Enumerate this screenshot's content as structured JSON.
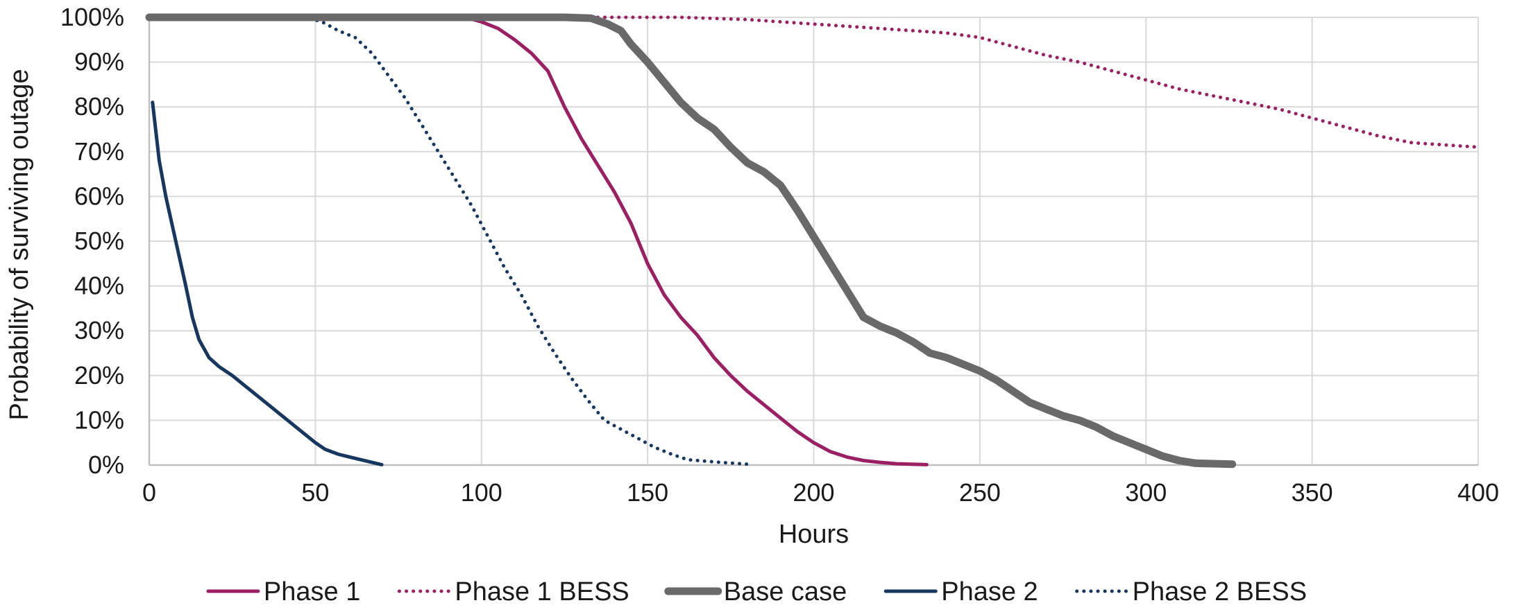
{
  "chart_data": {
    "type": "line",
    "title": "",
    "xlabel": "Hours",
    "ylabel": "Probability of surviving outage",
    "xlim": [
      0,
      400
    ],
    "ylim": [
      0,
      100
    ],
    "x_ticks": [
      0,
      50,
      100,
      150,
      200,
      250,
      300,
      350,
      400
    ],
    "x_tick_labels": [
      "0",
      "50",
      "100",
      "150",
      "200",
      "250",
      "300",
      "350",
      "400"
    ],
    "y_ticks": [
      0,
      10,
      20,
      30,
      40,
      50,
      60,
      70,
      80,
      90,
      100
    ],
    "y_tick_labels": [
      "0%",
      "10%",
      "20%",
      "30%",
      "40%",
      "50%",
      "60%",
      "70%",
      "80%",
      "90%",
      "100%"
    ],
    "grid": "both",
    "legend_position": "bottom",
    "series": [
      {
        "name": "Phase 1",
        "color": "#9b2063",
        "style": "solid",
        "width": "medium",
        "points": [
          [
            0,
            100
          ],
          [
            95,
            100
          ],
          [
            100,
            99
          ],
          [
            105,
            97.5
          ],
          [
            110,
            95
          ],
          [
            115,
            92
          ],
          [
            120,
            88
          ],
          [
            125,
            80
          ],
          [
            130,
            73
          ],
          [
            135,
            67
          ],
          [
            140,
            61
          ],
          [
            145,
            54
          ],
          [
            150,
            45
          ],
          [
            155,
            38
          ],
          [
            160,
            33
          ],
          [
            165,
            29
          ],
          [
            170,
            24
          ],
          [
            175,
            20
          ],
          [
            180,
            16.5
          ],
          [
            185,
            13.5
          ],
          [
            190,
            10.5
          ],
          [
            195,
            7.5
          ],
          [
            200,
            5
          ],
          [
            205,
            3
          ],
          [
            210,
            1.8
          ],
          [
            215,
            1
          ],
          [
            220,
            0.6
          ],
          [
            225,
            0.3
          ],
          [
            234,
            0.1
          ]
        ]
      },
      {
        "name": "Phase 1 BESS",
        "color": "#9b2063",
        "style": "dotted",
        "width": "medium",
        "points": [
          [
            0,
            100
          ],
          [
            135,
            100
          ],
          [
            160,
            100
          ],
          [
            180,
            99.5
          ],
          [
            200,
            98.5
          ],
          [
            220,
            97.5
          ],
          [
            240,
            96.5
          ],
          [
            250,
            95.5
          ],
          [
            260,
            93.5
          ],
          [
            270,
            91.5
          ],
          [
            280,
            90
          ],
          [
            290,
            88
          ],
          [
            300,
            86
          ],
          [
            310,
            84
          ],
          [
            320,
            82.5
          ],
          [
            330,
            81
          ],
          [
            340,
            79.5
          ],
          [
            350,
            77.5
          ],
          [
            360,
            75.5
          ],
          [
            370,
            73.5
          ],
          [
            380,
            72
          ],
          [
            390,
            71.5
          ],
          [
            400,
            71
          ]
        ]
      },
      {
        "name": "Base case",
        "color": "#696969",
        "style": "solid",
        "width": "thick",
        "points": [
          [
            0,
            100
          ],
          [
            125,
            100
          ],
          [
            133,
            99.8
          ],
          [
            138,
            98.5
          ],
          [
            142,
            97
          ],
          [
            145,
            94
          ],
          [
            150,
            90
          ],
          [
            155,
            85.5
          ],
          [
            160,
            81
          ],
          [
            165,
            77.5
          ],
          [
            170,
            75
          ],
          [
            175,
            71
          ],
          [
            180,
            67.5
          ],
          [
            185,
            65.5
          ],
          [
            190,
            62.5
          ],
          [
            195,
            57
          ],
          [
            200,
            51
          ],
          [
            205,
            45
          ],
          [
            210,
            39
          ],
          [
            215,
            33
          ],
          [
            220,
            31
          ],
          [
            225,
            29.5
          ],
          [
            230,
            27.5
          ],
          [
            235,
            25
          ],
          [
            240,
            24
          ],
          [
            245,
            22.5
          ],
          [
            250,
            21
          ],
          [
            255,
            19
          ],
          [
            260,
            16.5
          ],
          [
            265,
            14
          ],
          [
            270,
            12.5
          ],
          [
            275,
            11
          ],
          [
            280,
            10
          ],
          [
            285,
            8.5
          ],
          [
            290,
            6.5
          ],
          [
            295,
            5
          ],
          [
            300,
            3.5
          ],
          [
            305,
            2
          ],
          [
            310,
            1
          ],
          [
            315,
            0.4
          ],
          [
            326,
            0.2
          ]
        ]
      },
      {
        "name": "Phase 2",
        "color": "#17375e",
        "style": "solid",
        "width": "medium",
        "points": [
          [
            1,
            81
          ],
          [
            3,
            68
          ],
          [
            5,
            60
          ],
          [
            8,
            50
          ],
          [
            11,
            40
          ],
          [
            13,
            33
          ],
          [
            15,
            28
          ],
          [
            18,
            24
          ],
          [
            21,
            22
          ],
          [
            25,
            20
          ],
          [
            30,
            17
          ],
          [
            35,
            14
          ],
          [
            40,
            11
          ],
          [
            45,
            8
          ],
          [
            50,
            5
          ],
          [
            53,
            3.5
          ],
          [
            57,
            2.4
          ],
          [
            62,
            1.5
          ],
          [
            67,
            0.6
          ],
          [
            70,
            0.1
          ]
        ]
      },
      {
        "name": "Phase 2 BESS",
        "color": "#17375e",
        "style": "dotted",
        "width": "medium",
        "points": [
          [
            0,
            100
          ],
          [
            47,
            100
          ],
          [
            52,
            99
          ],
          [
            57,
            97
          ],
          [
            62,
            95.5
          ],
          [
            67,
            92
          ],
          [
            72,
            87
          ],
          [
            77,
            82
          ],
          [
            82,
            76
          ],
          [
            87,
            70
          ],
          [
            92,
            64
          ],
          [
            97,
            58
          ],
          [
            102,
            51
          ],
          [
            107,
            44
          ],
          [
            112,
            38
          ],
          [
            117,
            31
          ],
          [
            122,
            25
          ],
          [
            127,
            19.5
          ],
          [
            132,
            14.5
          ],
          [
            137,
            10
          ],
          [
            142,
            8
          ],
          [
            147,
            6
          ],
          [
            152,
            4
          ],
          [
            157,
            2.5
          ],
          [
            162,
            1.2
          ],
          [
            167,
            0.9
          ],
          [
            172,
            0.6
          ],
          [
            180,
            0.2
          ]
        ]
      }
    ]
  }
}
